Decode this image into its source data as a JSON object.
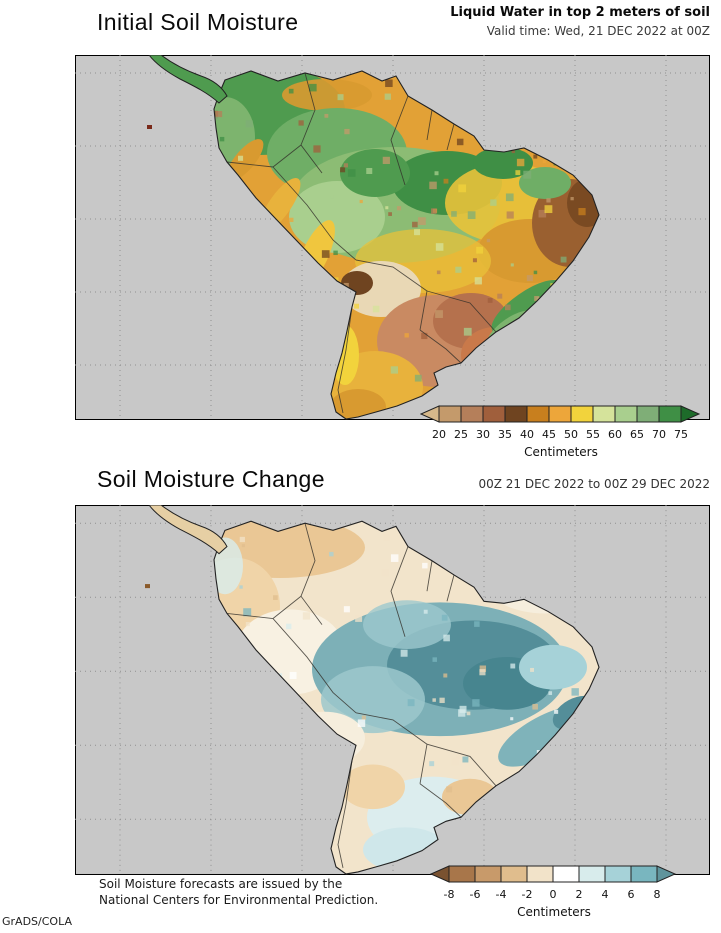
{
  "page": {
    "credit": "GrADS/COLA"
  },
  "top_panel": {
    "title": "Initial Soil Moisture",
    "subtitle": "Liquid Water in top 2 meters of soil",
    "valid_time": "Valid time: Wed, 21 DEC 2022 at 00Z",
    "colorbar": {
      "unit": "Centimeters",
      "tick_labels": [
        "20",
        "25",
        "30",
        "35",
        "40",
        "45",
        "50",
        "55",
        "60",
        "65",
        "70",
        "75"
      ],
      "segment_colors": [
        "#c49a6b",
        "#b57f5a",
        "#a05f3c",
        "#6f4420",
        "#c87f1e",
        "#eda63a",
        "#f2d33c",
        "#d5e39b",
        "#a9cf8e",
        "#7fae77",
        "#3f8f45"
      ],
      "arrow_left_color": "#d6b88a",
      "arrow_right_color": "#1d6b2a"
    }
  },
  "bottom_panel": {
    "title": "Soil Moisture Change",
    "period": "00Z 21 DEC 2022 to 00Z 29 DEC 2022",
    "footnote_line1": "Soil Moisture forecasts are issued by the",
    "footnote_line2": "National Centers for Environmental Prediction.",
    "colorbar": {
      "unit": "Centimeters",
      "tick_labels": [
        "-8",
        "-6",
        "-4",
        "-2",
        "0",
        "2",
        "4",
        "6",
        "8"
      ],
      "segment_colors": [
        "#a8764a",
        "#c89a6a",
        "#e0bd8d",
        "#f2e3c9",
        "#ffffff",
        "#d8ecec",
        "#a6d2d8",
        "#79b6bf"
      ],
      "arrow_left_color": "#7a5230",
      "arrow_right_color": "#5f949c"
    }
  },
  "chart_data": [
    {
      "type": "heatmap",
      "title": "Initial Soil Moisture",
      "subtitle": "Liquid Water in top 2 meters of soil",
      "valid_time": "Valid time: Wed, 21 DEC 2022 at 00Z",
      "unit": "Centimeters",
      "scale_ticks": [
        20,
        25,
        30,
        35,
        40,
        45,
        50,
        55,
        60,
        65,
        70,
        75
      ],
      "legend_position": "bottom"
    },
    {
      "type": "heatmap",
      "title": "Soil Moisture Change",
      "subtitle": "00Z 21 DEC 2022 to 00Z 29 DEC 2022",
      "unit": "Centimeters",
      "scale_ticks": [
        -8,
        -6,
        -4,
        -2,
        0,
        2,
        4,
        6,
        8
      ],
      "legend_position": "bottom"
    }
  ]
}
